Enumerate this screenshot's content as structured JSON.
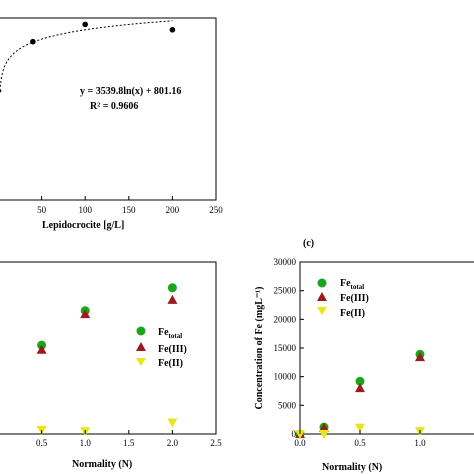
{
  "chart_data": [
    {
      "type": "scatter",
      "xlabel": "Lepidocrocite [g/L]",
      "ylabel": "",
      "xlim": [
        0,
        250
      ],
      "ylim": [
        0,
        1000
      ],
      "xticks": [
        "50",
        "100",
        "150",
        "200",
        "250"
      ],
      "points": {
        "x": [
          40,
          100,
          200
        ],
        "y": [
          870,
          965,
          935
        ]
      },
      "fit": {
        "a": 3539.8,
        "b": 801.16
      },
      "equation": "y = 3539.8ln(x) + 801.16",
      "r_squared": "R² = 0.9606",
      "grid": false
    },
    {
      "type": "scatter",
      "xlabel": "Normality (N)",
      "ylabel": "",
      "xlim": [
        0,
        2.5
      ],
      "ylim": [
        0,
        30000
      ],
      "xticks": [
        "0.5",
        "1.0",
        "1.5",
        "2.0",
        "2.5"
      ],
      "x": [
        0.5,
        1.0,
        2.0
      ],
      "series": [
        {
          "name": "Fe",
          "sub": "total",
          "values": [
            15500,
            21500,
            25500
          ],
          "color": "#1aa51a",
          "marker": "circle"
        },
        {
          "name": "Fe(III)",
          "values": [
            14700,
            20900,
            23400
          ],
          "color": "#9b1c1c",
          "marker": "triangle-up"
        },
        {
          "name": "Fe(II)",
          "values": [
            700,
            500,
            2000
          ],
          "color": "#e6e61a",
          "marker": "triangle-down"
        }
      ],
      "grid": false
    },
    {
      "type": "scatter",
      "panel_label": "(c)",
      "xlabel": "Normality (N)",
      "ylabel": "Concentration of Fe (mgL⁻¹)",
      "xlim": [
        0,
        1.5
      ],
      "ylim": [
        0,
        30000
      ],
      "xticks": [
        "0.0",
        "0.5",
        "1.0"
      ],
      "yticks": [
        "0",
        "5000",
        "10000",
        "15000",
        "20000",
        "25000",
        "30000"
      ],
      "x": [
        0.0,
        0.2,
        0.5,
        1.0
      ],
      "series": [
        {
          "name": "Fe",
          "sub": "total",
          "values": [
            0,
            1200,
            9200,
            13900
          ],
          "color": "#1aa51a",
          "marker": "circle"
        },
        {
          "name": "Fe(III)",
          "values": [
            0,
            1100,
            8000,
            13400
          ],
          "color": "#9b1c1c",
          "marker": "triangle-up"
        },
        {
          "name": "Fe(II)",
          "values": [
            0,
            0,
            1100,
            500
          ],
          "color": "#e6e61a",
          "marker": "triangle-down"
        }
      ],
      "grid": false
    }
  ]
}
